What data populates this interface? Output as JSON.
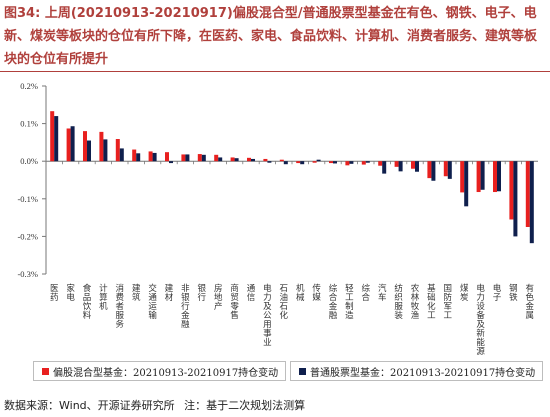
{
  "header": {
    "title": "图34:  上周(20210913-20210917)偏股混合型/普通股票型基金在有色、钢铁、电子、电新、煤炭等板块的仓位有所下降，在医药、家电、食品饮料、计算机、消费者服务、建筑等板块的仓位有所提升"
  },
  "footer": {
    "source": "数据来源：Wind、开源证券研究所",
    "note": "注：基于二次规划法测算"
  },
  "colors": {
    "series_a": "#e8201f",
    "series_b": "#0f1f4d",
    "title": "#b0403c"
  },
  "chart_data": {
    "type": "bar",
    "title": "",
    "xlabel": "",
    "ylabel": "",
    "ylim": [
      -0.3,
      0.2
    ],
    "yticks": [
      0.2,
      0.1,
      0.0,
      -0.1,
      -0.2,
      -0.3
    ],
    "ytick_labels": [
      "0.2%",
      "0.1%",
      "0.0%",
      "-0.1%",
      "-0.2%",
      "-0.3%"
    ],
    "grid": false,
    "legend_position": "bottom",
    "categories": [
      "医药",
      "家电",
      "食品饮料",
      "计算机",
      "消费者服务",
      "建筑",
      "交通运输",
      "建材",
      "非银行金融",
      "银行",
      "房地产",
      "商贸零售",
      "通信",
      "电力及公用事业",
      "石油石化",
      "机械",
      "传媒",
      "综合金融",
      "轻工制造",
      "综合",
      "汽车",
      "纺织服装",
      "农林牧渔",
      "基础化工",
      "国防军工",
      "煤炭",
      "电力设备及新能源",
      "电子",
      "钢铁",
      "有色金属"
    ],
    "series": [
      {
        "name": "偏股混合型基金：20210913-20210917持仓变动",
        "values": [
          0.133,
          0.087,
          0.08,
          0.078,
          0.059,
          0.031,
          0.026,
          0.024,
          0.018,
          0.019,
          0.017,
          0.01,
          0.009,
          0.006,
          0.004,
          -0.005,
          -0.004,
          -0.005,
          -0.011,
          -0.009,
          -0.012,
          -0.015,
          -0.02,
          -0.045,
          -0.04,
          -0.083,
          -0.082,
          -0.082,
          -0.155,
          -0.175
        ]
      },
      {
        "name": "普通股票型基金：20210913-20210917持仓变动",
        "values": [
          0.12,
          0.093,
          0.055,
          0.058,
          0.034,
          0.021,
          0.022,
          -0.005,
          0.018,
          0.017,
          0.01,
          0.008,
          0.006,
          -0.004,
          -0.008,
          -0.008,
          0.004,
          -0.006,
          -0.007,
          -0.004,
          -0.033,
          -0.027,
          -0.028,
          -0.052,
          -0.047,
          -0.12,
          -0.076,
          -0.08,
          -0.2,
          -0.218
        ]
      }
    ]
  }
}
